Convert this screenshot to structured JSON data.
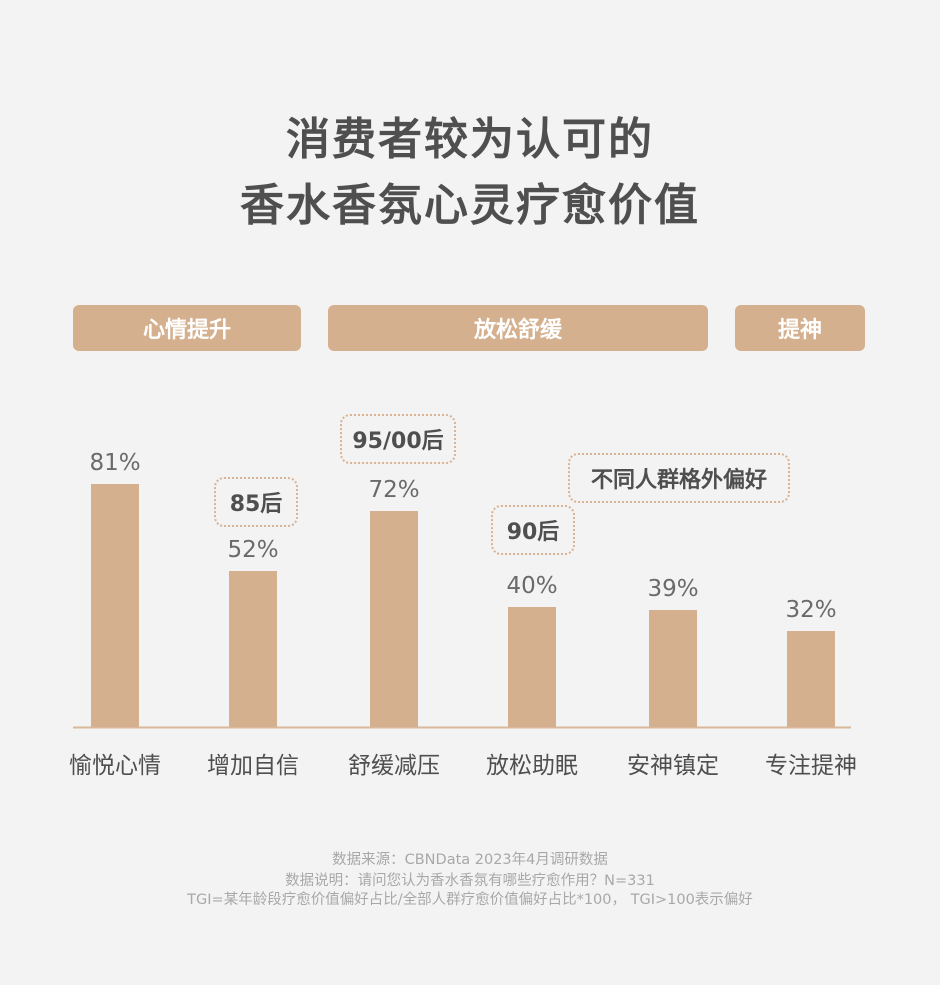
{
  "title": {
    "line1": "消费者较为认可的",
    "line2": "香水香氛心灵疗愈价值"
  },
  "groups": [
    {
      "label": "心情提升"
    },
    {
      "label": "放松舒缓"
    },
    {
      "label": "提神"
    }
  ],
  "callouts": {
    "c85": "85后",
    "c95": "95/00后",
    "c90": "90后",
    "other": "不同人群格外偏好"
  },
  "chart_data": {
    "type": "bar",
    "categories": [
      "愉悦心情",
      "增加自信",
      "舒缓减压",
      "放松助眠",
      "安神镇定",
      "专注提神"
    ],
    "values": [
      81,
      52,
      72,
      40,
      39,
      32
    ],
    "value_labels": [
      "81%",
      "52%",
      "72%",
      "40%",
      "39%",
      "32%"
    ],
    "title": "",
    "xlabel": "",
    "ylabel": "",
    "ylim": [
      0,
      100
    ],
    "grid": false,
    "bar_color": "#d4b08e",
    "axis_color": "#d9b89c"
  },
  "footer": {
    "source": "数据来源：CBNData 2023年4月调研数据",
    "question": "数据说明：请问您认为香水香氛有哪些疗愈作用？N=331",
    "tgi": "TGI=某年龄段疗愈价值偏好占比/全部人群疗愈价值偏好占比*100， TGI>100表示偏好"
  }
}
